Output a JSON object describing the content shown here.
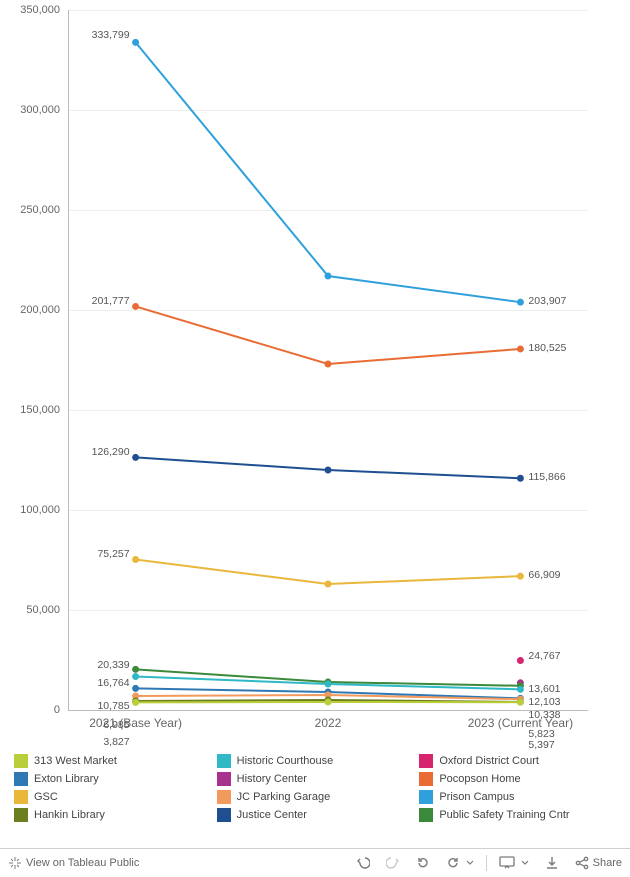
{
  "chart": {
    "type": "line",
    "background_color": "#ffffff",
    "grid_color": "#eeeeee",
    "axis_color": "#bbbbbb",
    "label_color": "#666666",
    "datalabel_color": "#555555",
    "font_family": "Arial",
    "ytick_fontsize": 11,
    "xtick_fontsize": 12,
    "datalabel_fontsize": 10.5,
    "ylim": [
      0,
      350000
    ],
    "ytick_step": 50000,
    "yticklabels": [
      "0",
      "50,000",
      "100,000",
      "150,000",
      "200,000",
      "250,000",
      "300,000",
      "350,000"
    ],
    "categories": [
      "2021 (Base Year)",
      "2022",
      "2023 (Current Year)"
    ],
    "line_width": 2,
    "marker_radius": 3.5,
    "series": [
      {
        "name": "Prison Campus",
        "color": "#2fa0db",
        "values": [
          333799,
          217000,
          203907
        ]
      },
      {
        "name": "Pocopson Home",
        "color": "#e86c33",
        "values": [
          201777,
          173000,
          180525
        ]
      },
      {
        "name": "Justice Center",
        "color": "#1f4f91",
        "values": [
          126290,
          120000,
          115866
        ]
      },
      {
        "name": "GSC",
        "color": "#e9b73a",
        "values": [
          75257,
          63000,
          66909
        ]
      },
      {
        "name": "Oxford District Court",
        "color": "#d6246e",
        "values": [
          null,
          null,
          24767
        ]
      },
      {
        "name": "History Center",
        "color": "#a8338e",
        "values": [
          null,
          null,
          13601
        ]
      },
      {
        "name": "Public Safety Training Cntr",
        "color": "#3b8a3b",
        "values": [
          20339,
          14000,
          12103
        ]
      },
      {
        "name": "Historic Courthouse",
        "color": "#2fb8c6",
        "values": [
          16764,
          13000,
          10338
        ]
      },
      {
        "name": "Exton Library",
        "color": "#2f78b3",
        "values": [
          10785,
          9000,
          5823
        ]
      },
      {
        "name": "JC Parking Garage",
        "color": "#f29a5d",
        "values": [
          6985,
          7500,
          5397
        ]
      },
      {
        "name": "Hankin Library",
        "color": "#6b7f1f",
        "values": [
          4500,
          5000,
          4000
        ]
      },
      {
        "name": "313 West Market",
        "color": "#b9ce3a",
        "values": [
          3827,
          4000,
          3900
        ]
      }
    ],
    "start_labels": [
      {
        "text": "333,799",
        "y": 333799,
        "dy": -6
      },
      {
        "text": "201,777",
        "y": 201777,
        "dy": -4
      },
      {
        "text": "126,290",
        "y": 126290,
        "dy": -4
      },
      {
        "text": "75,257",
        "y": 75257,
        "dy": -4
      },
      {
        "text": "20,339",
        "y": 20339,
        "dy": -3
      },
      {
        "text": "16,764",
        "y": 16764,
        "dy": 8
      },
      {
        "text": "10,785",
        "y": 10785,
        "dy": 19
      },
      {
        "text": "6,985",
        "y": 6985,
        "dy": 30
      },
      {
        "text": "3,827",
        "y": 3827,
        "dy": 41
      }
    ],
    "end_labels": [
      {
        "text": "203,907",
        "y": 203907,
        "dy": 0
      },
      {
        "text": "180,525",
        "y": 180525,
        "dy": 0
      },
      {
        "text": "115,866",
        "y": 115866,
        "dy": 0
      },
      {
        "text": "66,909",
        "y": 66909,
        "dy": 0
      },
      {
        "text": "24,767",
        "y": 24767,
        "dy": -3
      },
      {
        "text": "13,601",
        "y": 13601,
        "dy": 7
      },
      {
        "text": "12,103",
        "y": 12103,
        "dy": 17
      },
      {
        "text": "10,338",
        "y": 10338,
        "dy": 27
      },
      {
        "text": "5,823",
        "y": 5823,
        "dy": 37
      },
      {
        "text": "5,397",
        "y": 5397,
        "dy": 47
      }
    ]
  },
  "legend": {
    "fontsize": 11,
    "swatch_size": 14,
    "order": [
      "313 West Market",
      "Historic Courthouse",
      "Oxford District Court",
      "Exton Library",
      "History Center",
      "Pocopson Home",
      "GSC",
      "JC Parking Garage",
      "Prison Campus",
      "Hankin Library",
      "Justice Center",
      "Public Safety Training Cntr"
    ]
  },
  "toolbar": {
    "view_on_label": "View on Tableau Public",
    "share_label": "Share",
    "icon_color": "#7a7a7a",
    "border_color": "#d0d0d0"
  }
}
